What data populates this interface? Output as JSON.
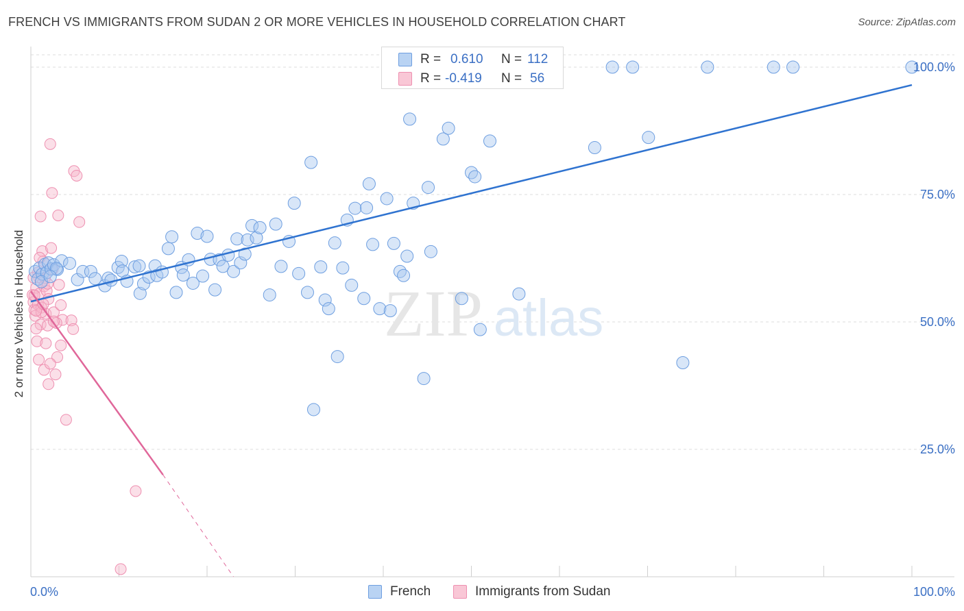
{
  "title": "FRENCH VS IMMIGRANTS FROM SUDAN 2 OR MORE VEHICLES IN HOUSEHOLD CORRELATION CHART",
  "source": "Source: ZipAtlas.com",
  "watermark": {
    "zip": "ZIP",
    "atlas": "atlas"
  },
  "legend": {
    "french": {
      "r_label": "R =",
      "r_value": "0.610",
      "n_label": "N =",
      "n_value": "112"
    },
    "sudan": {
      "r_label": "R =",
      "r_value": "-0.419",
      "n_label": "N =",
      "n_value": "56"
    }
  },
  "colors": {
    "french_fill": "#a8c8f0",
    "french_stroke": "#6d9ee0",
    "french_line": "#2f73d0",
    "sudan_fill": "#f7b8cc",
    "sudan_stroke": "#ee8fb0",
    "sudan_line": "#e0679a",
    "axis_text": "#3a6fc4",
    "grid": "#dcdcdc"
  },
  "chart_data": {
    "type": "scatter",
    "title": "FRENCH VS IMMIGRANTS FROM SUDAN 2 OR MORE VEHICLES IN HOUSEHOLD CORRELATION CHART",
    "xlabel": "",
    "ylabel": "2 or more Vehicles in Household",
    "xlim": [
      0,
      100
    ],
    "ylim": [
      0,
      100
    ],
    "x_tick_labels": [
      "0.0%",
      "100.0%"
    ],
    "y_tick_labels": [
      "25.0%",
      "50.0%",
      "75.0%",
      "100.0%"
    ],
    "y_ticks": [
      25,
      50,
      75,
      100
    ],
    "grid": true,
    "legend_position": "top-center",
    "series": [
      {
        "name": "French",
        "R": 0.61,
        "N": 112,
        "trend": {
          "x0": 0,
          "y0": 54.0,
          "x1": 100,
          "y1": 96.5
        },
        "points": [
          [
            0.5,
            59.9
          ],
          [
            0.8,
            58.4
          ],
          [
            1.0,
            60.6
          ],
          [
            1.3,
            59.4
          ],
          [
            1.6,
            61.3
          ],
          [
            1.8,
            59.7
          ],
          [
            2.0,
            61.6
          ],
          [
            2.3,
            60.4
          ],
          [
            2.6,
            61.2
          ],
          [
            3.0,
            60.3
          ],
          [
            3.5,
            62.0
          ],
          [
            4.4,
            61.5
          ],
          [
            5.3,
            58.3
          ],
          [
            5.9,
            59.9
          ],
          [
            6.8,
            59.9
          ],
          [
            7.3,
            58.5
          ],
          [
            8.4,
            57.1
          ],
          [
            8.8,
            58.6
          ],
          [
            9.1,
            58.2
          ],
          [
            9.9,
            60.7
          ],
          [
            10.3,
            61.9
          ],
          [
            10.4,
            60.0
          ],
          [
            10.9,
            58.0
          ],
          [
            11.8,
            60.8
          ],
          [
            12.3,
            61.0
          ],
          [
            12.4,
            55.6
          ],
          [
            12.8,
            57.5
          ],
          [
            13.4,
            58.8
          ],
          [
            14.1,
            61.0
          ],
          [
            14.3,
            59.1
          ],
          [
            14.9,
            59.8
          ],
          [
            15.6,
            64.4
          ],
          [
            16.0,
            66.7
          ],
          [
            16.5,
            55.8
          ],
          [
            17.1,
            60.7
          ],
          [
            17.3,
            59.2
          ],
          [
            17.9,
            62.2
          ],
          [
            18.4,
            57.6
          ],
          [
            18.9,
            67.4
          ],
          [
            19.5,
            59.0
          ],
          [
            20.0,
            66.8
          ],
          [
            20.4,
            62.3
          ],
          [
            20.9,
            56.3
          ],
          [
            21.4,
            62.2
          ],
          [
            21.8,
            60.9
          ],
          [
            22.4,
            63.1
          ],
          [
            23.0,
            59.9
          ],
          [
            23.4,
            66.3
          ],
          [
            23.8,
            61.6
          ],
          [
            24.3,
            63.3
          ],
          [
            24.6,
            66.1
          ],
          [
            25.1,
            68.9
          ],
          [
            25.6,
            66.5
          ],
          [
            26.0,
            68.5
          ],
          [
            27.1,
            55.3
          ],
          [
            27.8,
            69.2
          ],
          [
            28.4,
            60.9
          ],
          [
            29.3,
            65.8
          ],
          [
            29.9,
            73.3
          ],
          [
            30.4,
            59.5
          ],
          [
            31.4,
            55.8
          ],
          [
            31.8,
            81.3
          ],
          [
            32.9,
            60.8
          ],
          [
            33.4,
            54.3
          ],
          [
            33.8,
            52.6
          ],
          [
            34.5,
            65.5
          ],
          [
            34.8,
            43.2
          ],
          [
            35.4,
            60.6
          ],
          [
            35.9,
            70.0
          ],
          [
            36.4,
            57.2
          ],
          [
            36.8,
            72.3
          ],
          [
            37.8,
            54.6
          ],
          [
            38.1,
            72.4
          ],
          [
            38.4,
            77.1
          ],
          [
            38.8,
            65.2
          ],
          [
            39.6,
            52.6
          ],
          [
            40.4,
            74.2
          ],
          [
            40.8,
            52.2
          ],
          [
            41.2,
            65.4
          ],
          [
            41.9,
            59.9
          ],
          [
            42.3,
            59.1
          ],
          [
            42.7,
            62.9
          ],
          [
            43.0,
            89.8
          ],
          [
            43.4,
            73.3
          ],
          [
            44.6,
            38.9
          ],
          [
            45.1,
            76.4
          ],
          [
            45.4,
            63.8
          ],
          [
            46.8,
            85.9
          ],
          [
            47.4,
            88.0
          ],
          [
            48.9,
            54.6
          ],
          [
            50.0,
            79.3
          ],
          [
            50.4,
            78.5
          ],
          [
            51.0,
            48.5
          ],
          [
            52.1,
            85.5
          ],
          [
            55.4,
            55.5
          ],
          [
            64.0,
            84.2
          ],
          [
            70.1,
            86.2
          ],
          [
            74.0,
            42.0
          ],
          [
            32.1,
            32.8
          ],
          [
            45.0,
            100.0
          ],
          [
            51.2,
            100.0
          ],
          [
            55.5,
            100.0
          ],
          [
            59.3,
            100.0
          ],
          [
            66.0,
            100.0
          ],
          [
            68.3,
            100.0
          ],
          [
            76.8,
            100.0
          ],
          [
            84.3,
            100.0
          ],
          [
            86.5,
            100.0
          ],
          [
            100.0,
            100.0
          ],
          [
            1.2,
            57.9
          ],
          [
            2.9,
            60.5
          ],
          [
            2.2,
            58.9
          ]
        ]
      },
      {
        "name": "Immigrants from Sudan",
        "R": -0.419,
        "N": 56,
        "trend": {
          "x0": 0,
          "y0": 56.0,
          "x1": 15.0,
          "y1": 20.0,
          "dashed_to": {
            "x": 23.0,
            "y": 0
          }
        },
        "points": [
          [
            0.2,
            55.3
          ],
          [
            0.3,
            53.9
          ],
          [
            0.4,
            52.4
          ],
          [
            0.5,
            51.2
          ],
          [
            0.6,
            56.7
          ],
          [
            0.7,
            46.2
          ],
          [
            0.8,
            53.4
          ],
          [
            0.9,
            58.8
          ],
          [
            1.0,
            55.6
          ],
          [
            1.1,
            49.5
          ],
          [
            1.2,
            52.8
          ],
          [
            1.3,
            63.9
          ],
          [
            1.4,
            61.9
          ],
          [
            1.5,
            57.0
          ],
          [
            1.6,
            58.6
          ],
          [
            1.7,
            51.6
          ],
          [
            1.8,
            56.1
          ],
          [
            1.9,
            49.3
          ],
          [
            2.0,
            54.5
          ],
          [
            2.2,
            84.9
          ],
          [
            2.3,
            64.5
          ],
          [
            2.4,
            75.3
          ],
          [
            2.5,
            60.4
          ],
          [
            2.6,
            51.9
          ],
          [
            2.8,
            39.7
          ],
          [
            3.0,
            43.1
          ],
          [
            3.1,
            70.9
          ],
          [
            3.2,
            57.3
          ],
          [
            3.4,
            53.3
          ],
          [
            3.6,
            50.4
          ],
          [
            4.0,
            30.8
          ],
          [
            4.6,
            50.3
          ],
          [
            4.8,
            48.6
          ],
          [
            4.9,
            79.6
          ],
          [
            5.2,
            78.7
          ],
          [
            5.5,
            69.6
          ],
          [
            1.1,
            70.7
          ],
          [
            1.0,
            62.6
          ],
          [
            0.6,
            48.7
          ],
          [
            0.9,
            42.6
          ],
          [
            1.5,
            40.6
          ],
          [
            2.2,
            41.8
          ],
          [
            2.0,
            37.8
          ],
          [
            1.7,
            45.8
          ],
          [
            1.2,
            51.9
          ],
          [
            0.4,
            55.2
          ],
          [
            0.8,
            59.7
          ],
          [
            2.9,
            49.8
          ],
          [
            3.4,
            45.4
          ],
          [
            11.9,
            16.8
          ],
          [
            10.2,
            1.5
          ],
          [
            0.3,
            58.7
          ],
          [
            0.6,
            52.2
          ],
          [
            1.4,
            53.5
          ],
          [
            1.9,
            57.5
          ],
          [
            2.6,
            50.1
          ]
        ]
      }
    ]
  }
}
